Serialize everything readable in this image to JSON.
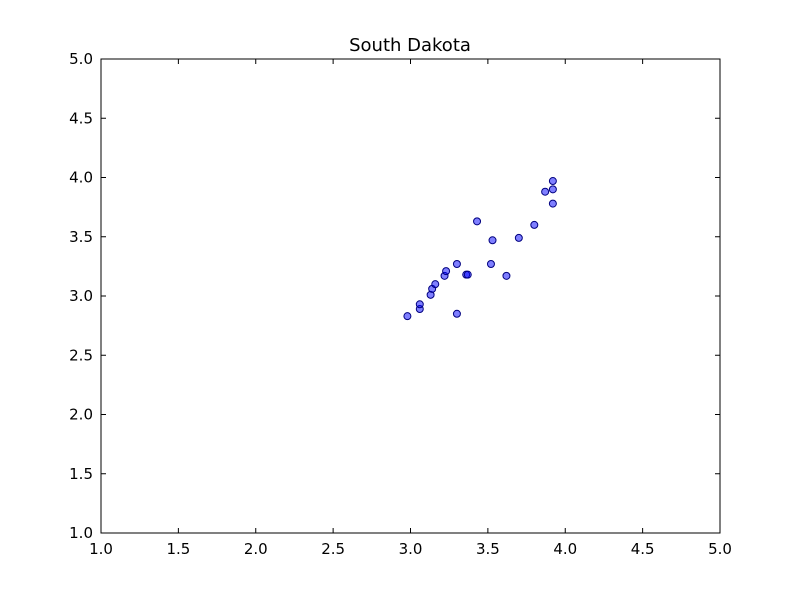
{
  "chart_data": {
    "type": "scatter",
    "title": "South Dakota",
    "xlabel": "",
    "ylabel": "",
    "xlim": [
      1.0,
      5.0
    ],
    "ylim": [
      1.0,
      5.0
    ],
    "xticks": [
      "1.0",
      "1.5",
      "2.0",
      "2.5",
      "3.0",
      "3.5",
      "4.0",
      "4.5",
      "5.0"
    ],
    "yticks": [
      "1.0",
      "1.5",
      "2.0",
      "2.5",
      "3.0",
      "3.5",
      "4.0",
      "4.5",
      "5.0"
    ],
    "grid": false,
    "colors": {
      "marker_fill": "#0000ff",
      "marker_edge": "#000080",
      "axes": "#000000"
    },
    "points": [
      {
        "x": 2.98,
        "y": 2.83
      },
      {
        "x": 3.06,
        "y": 2.89
      },
      {
        "x": 3.06,
        "y": 2.93
      },
      {
        "x": 3.13,
        "y": 3.01
      },
      {
        "x": 3.14,
        "y": 3.06
      },
      {
        "x": 3.16,
        "y": 3.1
      },
      {
        "x": 3.22,
        "y": 3.17
      },
      {
        "x": 3.23,
        "y": 3.21
      },
      {
        "x": 3.3,
        "y": 3.27
      },
      {
        "x": 3.3,
        "y": 2.85
      },
      {
        "x": 3.36,
        "y": 3.18
      },
      {
        "x": 3.37,
        "y": 3.18
      },
      {
        "x": 3.43,
        "y": 3.63
      },
      {
        "x": 3.52,
        "y": 3.27
      },
      {
        "x": 3.53,
        "y": 3.47
      },
      {
        "x": 3.62,
        "y": 3.17
      },
      {
        "x": 3.7,
        "y": 3.49
      },
      {
        "x": 3.8,
        "y": 3.6
      },
      {
        "x": 3.87,
        "y": 3.88
      },
      {
        "x": 3.92,
        "y": 3.78
      },
      {
        "x": 3.92,
        "y": 3.9
      },
      {
        "x": 3.92,
        "y": 3.97
      }
    ]
  }
}
